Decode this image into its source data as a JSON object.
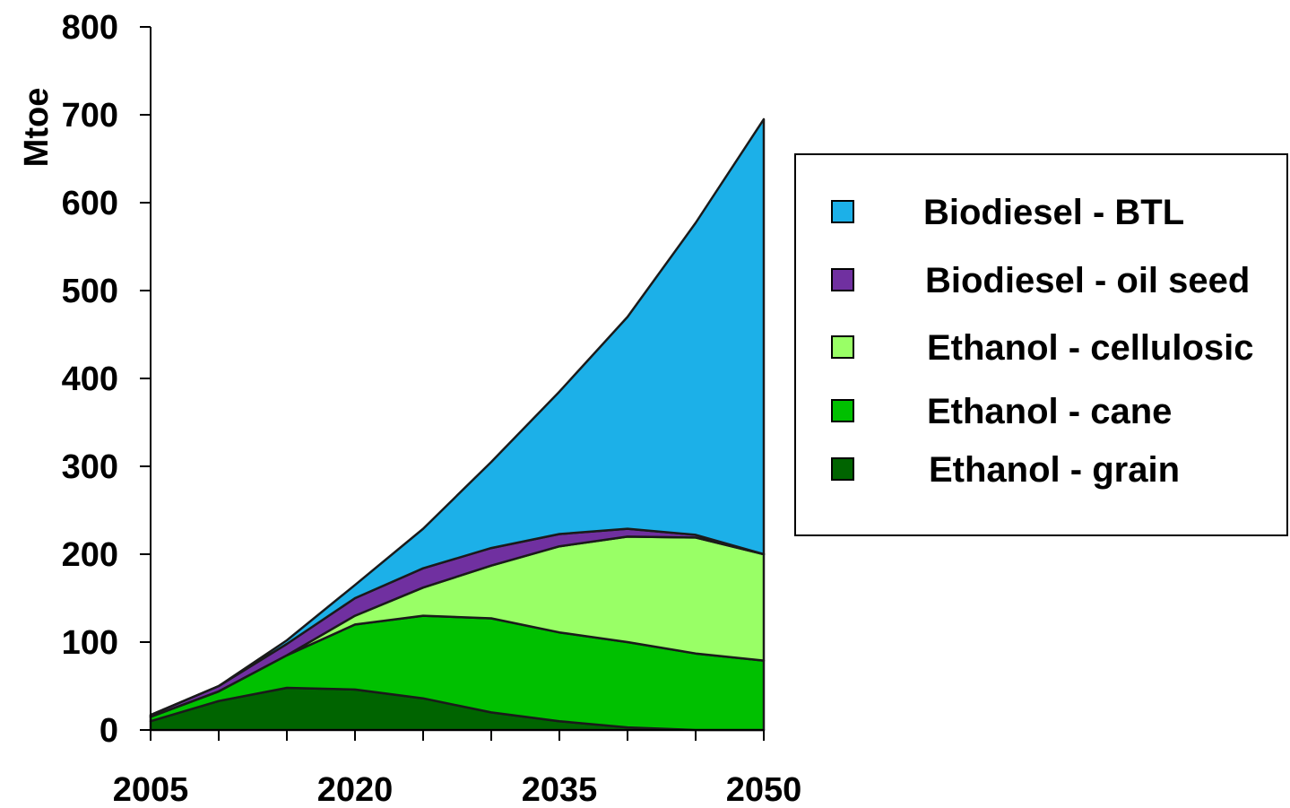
{
  "chart_data": {
    "type": "area",
    "stacked": true,
    "ylabel": "Mtoe",
    "xlabel": "",
    "ylim": [
      0,
      800
    ],
    "yticks": [
      0,
      100,
      200,
      300,
      400,
      500,
      600,
      700,
      800
    ],
    "xticks": [
      2005,
      2020,
      2035,
      2050
    ],
    "x": [
      2005,
      2010,
      2015,
      2020,
      2025,
      2030,
      2035,
      2040,
      2045,
      2050
    ],
    "legend_position": "right",
    "series": [
      {
        "name": "Ethanol - grain",
        "color": "#006400",
        "values": [
          10,
          33,
          48,
          46,
          36,
          20,
          10,
          3,
          0,
          0
        ]
      },
      {
        "name": "Ethanol - cane",
        "color": "#00c000",
        "values": [
          5,
          11,
          37,
          74,
          94,
          107,
          101,
          97,
          87,
          79
        ]
      },
      {
        "name": "Ethanol - cellulosic",
        "color": "#99ff66",
        "values": [
          0,
          0,
          0,
          10,
          32,
          60,
          98,
          120,
          132,
          121
        ]
      },
      {
        "name": "Biodiesel - oil seed",
        "color": "#7030a0",
        "values": [
          2,
          6,
          13,
          20,
          22,
          20,
          14,
          9,
          3,
          0
        ]
      },
      {
        "name": "Biodiesel - BTL",
        "color": "#1cb0e8",
        "values": [
          0,
          0,
          4,
          15,
          45,
          98,
          162,
          241,
          355,
          495
        ]
      }
    ],
    "legend_order": [
      "Biodiesel - BTL",
      "Biodiesel - oil seed",
      "Ethanol - cellulosic",
      "Ethanol - cane",
      "Ethanol - grain"
    ]
  }
}
